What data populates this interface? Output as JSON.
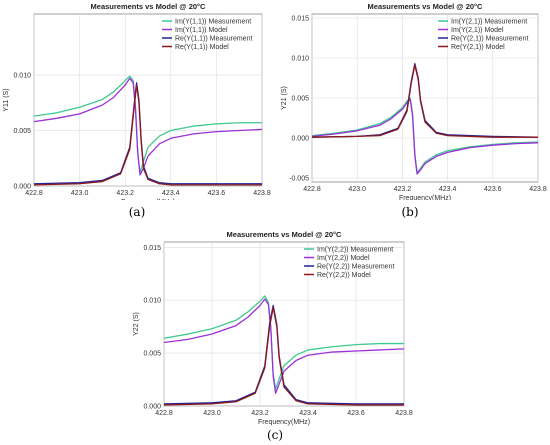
{
  "chart_data": [
    {
      "type": "line",
      "panel": "a",
      "caption": "(a)",
      "title": "Measurements vs Model @ 20°C",
      "xlabel": "Frequency (MHz)",
      "ylabel": "Y11 (S)",
      "xlim": [
        422.8,
        423.8
      ],
      "ylim": [
        0,
        0.0155
      ],
      "xticks": [
        "422.8",
        "423.0",
        "423.2",
        "423.4",
        "423.6",
        "423.8"
      ],
      "yticks": [
        "0.000",
        "0.005",
        "0.010"
      ],
      "ytick_values": [
        0,
        0.005,
        0.01
      ],
      "grid": true,
      "legend_position": "top-right",
      "series": [
        {
          "name": "Im(Y(1,1)) Measurement",
          "color": "#3ec98e",
          "x": [
            422.8,
            422.9,
            423.0,
            423.1,
            423.15,
            423.2,
            423.22,
            423.235,
            423.245,
            423.255,
            423.265,
            423.28,
            423.3,
            423.35,
            423.4,
            423.5,
            423.6,
            423.7,
            423.8
          ],
          "y": [
            0.0063,
            0.0066,
            0.0071,
            0.0078,
            0.0085,
            0.0095,
            0.0099,
            0.0095,
            0.0072,
            0.003,
            0.0012,
            0.0022,
            0.0035,
            0.0045,
            0.005,
            0.0054,
            0.0056,
            0.0057,
            0.0057
          ]
        },
        {
          "name": "Im(Y(1,1)) Model",
          "color": "#9b30d9",
          "x": [
            422.8,
            422.9,
            423.0,
            423.1,
            423.15,
            423.2,
            423.22,
            423.235,
            423.245,
            423.255,
            423.265,
            423.28,
            423.3,
            423.35,
            423.4,
            423.5,
            423.6,
            423.7,
            423.8
          ],
          "y": [
            0.0058,
            0.0061,
            0.0065,
            0.0073,
            0.008,
            0.0091,
            0.0097,
            0.0093,
            0.007,
            0.003,
            0.001,
            0.0016,
            0.0027,
            0.0038,
            0.0043,
            0.0047,
            0.0049,
            0.005,
            0.0051
          ]
        },
        {
          "name": "Re(Y(1,1)) Measurement",
          "color": "#22229a",
          "x": [
            422.8,
            423.0,
            423.1,
            423.18,
            423.22,
            423.24,
            423.25,
            423.26,
            423.27,
            423.28,
            423.3,
            423.35,
            423.4,
            423.6,
            423.8
          ],
          "y": [
            0.0002,
            0.0003,
            0.0005,
            0.0012,
            0.0035,
            0.0075,
            0.0093,
            0.0078,
            0.0042,
            0.0018,
            0.0007,
            0.0003,
            0.0002,
            0.0002,
            0.0002
          ]
        },
        {
          "name": "Re(Y(1,1)) Model",
          "color": "#8b1a1a",
          "x": [
            422.8,
            423.0,
            423.1,
            423.18,
            423.22,
            423.24,
            423.25,
            423.26,
            423.27,
            423.28,
            423.3,
            423.35,
            423.4,
            423.6,
            423.8
          ],
          "y": [
            0.0001,
            0.0002,
            0.0004,
            0.0011,
            0.0033,
            0.0072,
            0.0091,
            0.0076,
            0.004,
            0.0016,
            0.0006,
            0.0002,
            0.0001,
            0.0001,
            0.0001
          ]
        }
      ]
    },
    {
      "type": "line",
      "panel": "b",
      "caption": "(b)",
      "title": "Measurements vs Model @ 20°C",
      "xlabel": "Frequency(MHz)",
      "ylabel": "Y21 (S)",
      "xlim": [
        422.8,
        423.8
      ],
      "ylim": [
        -0.0055,
        0.0155
      ],
      "xticks": [
        "422.8",
        "423.0",
        "423.2",
        "423.4",
        "423.6",
        "423.8"
      ],
      "yticks": [
        "-0.005",
        "0.000",
        "0.005",
        "0.010",
        "0.015"
      ],
      "ytick_values": [
        -0.005,
        0,
        0.005,
        0.01,
        0.015
      ],
      "grid": true,
      "legend_position": "top-right",
      "series": [
        {
          "name": "Im(Y(2,1)) Measurement",
          "color": "#3ec98e",
          "x": [
            422.8,
            422.9,
            423.0,
            423.1,
            423.15,
            423.2,
            423.22,
            423.235,
            423.245,
            423.255,
            423.265,
            423.28,
            423.3,
            423.35,
            423.4,
            423.5,
            423.6,
            423.7,
            423.8
          ],
          "y": [
            0.0003,
            0.0006,
            0.001,
            0.0018,
            0.0026,
            0.0038,
            0.0046,
            0.005,
            0.003,
            -0.002,
            -0.0043,
            -0.0038,
            -0.003,
            -0.0021,
            -0.0016,
            -0.0011,
            -0.0008,
            -0.0006,
            -0.0005
          ]
        },
        {
          "name": "Im(Y(2,1)) Model",
          "color": "#9b30d9",
          "x": [
            422.8,
            422.9,
            423.0,
            423.1,
            423.15,
            423.2,
            423.22,
            423.235,
            423.245,
            423.255,
            423.265,
            423.28,
            423.3,
            423.35,
            423.4,
            423.5,
            423.6,
            423.7,
            423.8
          ],
          "y": [
            0.0002,
            0.0005,
            0.0009,
            0.0016,
            0.0024,
            0.0036,
            0.0044,
            0.0048,
            0.0028,
            -0.0022,
            -0.0045,
            -0.004,
            -0.0032,
            -0.0023,
            -0.0018,
            -0.0012,
            -0.0009,
            -0.0007,
            -0.0006
          ]
        },
        {
          "name": "Re(Y(2,1)) Measurement",
          "color": "#22229a",
          "x": [
            422.8,
            423.0,
            423.1,
            423.18,
            423.22,
            423.24,
            423.255,
            423.27,
            423.28,
            423.3,
            423.35,
            423.4,
            423.6,
            423.8
          ],
          "y": [
            0.0001,
            0.0002,
            0.0004,
            0.0012,
            0.0035,
            0.0072,
            0.0093,
            0.0075,
            0.0048,
            0.0022,
            0.0007,
            0.0004,
            0.0002,
            0.0001
          ]
        },
        {
          "name": "Re(Y(2,1)) Model",
          "color": "#8b1a1a",
          "x": [
            422.8,
            423.0,
            423.1,
            423.18,
            423.22,
            423.24,
            423.255,
            423.27,
            423.28,
            423.3,
            423.35,
            423.4,
            423.6,
            423.8
          ],
          "y": [
            0.0001,
            0.0002,
            0.0003,
            0.0011,
            0.0033,
            0.007,
            0.0091,
            0.0073,
            0.0046,
            0.002,
            0.0006,
            0.0003,
            0.0001,
            0.0001
          ]
        }
      ]
    },
    {
      "type": "line",
      "panel": "c",
      "caption": "(c)",
      "title": "Measurements vs Model @ 20°C",
      "xlabel": "Frequency(MHz)",
      "ylabel": "Y22 (S)",
      "xlim": [
        422.8,
        423.8
      ],
      "ylim": [
        0,
        0.0155
      ],
      "xticks": [
        "422.8",
        "423.0",
        "423.2",
        "423.4",
        "423.6",
        "423.8"
      ],
      "yticks": [
        "0.000",
        "0.005",
        "0.010",
        "0.015"
      ],
      "ytick_values": [
        0,
        0.005,
        0.01,
        0.015
      ],
      "grid": true,
      "legend_position": "top-right",
      "series": [
        {
          "name": "Im(Y(2,2)) Measurement",
          "color": "#3ec98e",
          "x": [
            422.8,
            422.9,
            423.0,
            423.1,
            423.15,
            423.2,
            423.22,
            423.235,
            423.245,
            423.255,
            423.265,
            423.28,
            423.3,
            423.35,
            423.4,
            423.5,
            423.6,
            423.7,
            423.8
          ],
          "y": [
            0.0064,
            0.0068,
            0.0073,
            0.0081,
            0.0089,
            0.0099,
            0.0104,
            0.0098,
            0.0075,
            0.003,
            0.0016,
            0.0026,
            0.0038,
            0.0048,
            0.0053,
            0.0056,
            0.0058,
            0.0059,
            0.0059
          ]
        },
        {
          "name": "Im(Y(2,2)) Model",
          "color": "#9b30d9",
          "x": [
            422.8,
            422.9,
            423.0,
            423.1,
            423.15,
            423.2,
            423.22,
            423.235,
            423.245,
            423.255,
            423.265,
            423.28,
            423.3,
            423.35,
            423.4,
            423.5,
            423.6,
            423.7,
            423.8
          ],
          "y": [
            0.006,
            0.0063,
            0.0068,
            0.0076,
            0.0084,
            0.0095,
            0.0101,
            0.0096,
            0.0073,
            0.0028,
            0.0012,
            0.0021,
            0.0033,
            0.0043,
            0.0048,
            0.0051,
            0.0052,
            0.0053,
            0.0054
          ]
        },
        {
          "name": "Re(Y(2,2)) Measurement",
          "color": "#22229a",
          "x": [
            422.8,
            423.0,
            423.1,
            423.18,
            423.22,
            423.24,
            423.255,
            423.27,
            423.28,
            423.3,
            423.35,
            423.4,
            423.6,
            423.8
          ],
          "y": [
            0.0002,
            0.0003,
            0.0005,
            0.0013,
            0.0038,
            0.0078,
            0.0095,
            0.0077,
            0.0047,
            0.002,
            0.0006,
            0.0003,
            0.0002,
            0.0002
          ]
        },
        {
          "name": "Re(Y(2,2)) Model",
          "color": "#8b1a1a",
          "x": [
            422.8,
            423.0,
            423.1,
            423.18,
            423.22,
            423.24,
            423.255,
            423.27,
            423.28,
            423.3,
            423.35,
            423.4,
            423.6,
            423.8
          ],
          "y": [
            0.0001,
            0.0002,
            0.0004,
            0.0012,
            0.0036,
            0.0075,
            0.0093,
            0.0075,
            0.0045,
            0.0018,
            0.0005,
            0.0002,
            0.0001,
            0.0001
          ]
        }
      ]
    }
  ]
}
